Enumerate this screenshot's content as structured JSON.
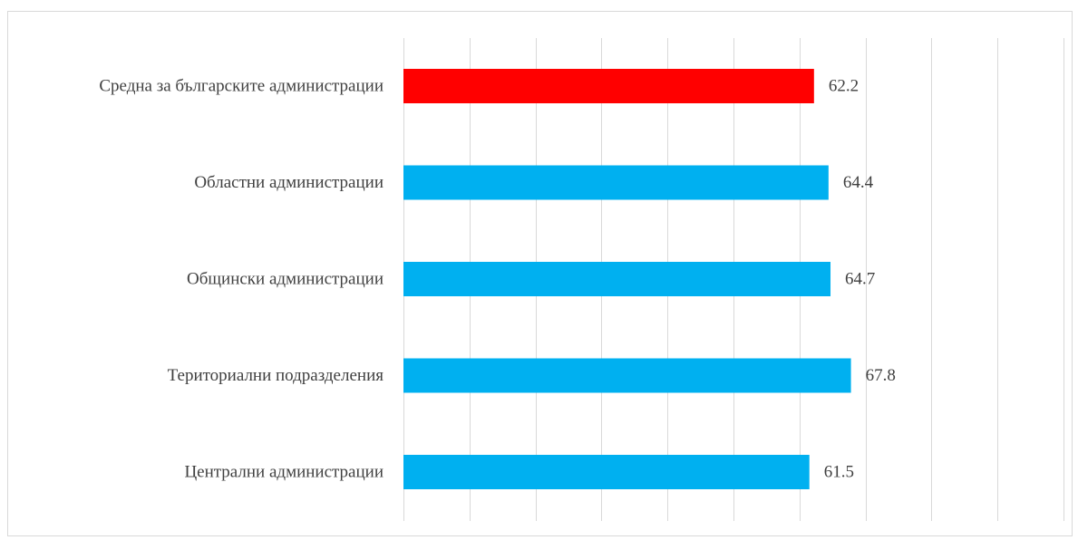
{
  "chart_data": {
    "type": "bar",
    "orientation": "horizontal",
    "categories": [
      "Средна за българските администрации",
      "Областни администрации",
      "Общински администрации",
      "Териториални подразделения",
      "Централни администрации"
    ],
    "values": [
      62.2,
      64.4,
      64.7,
      67.8,
      61.5
    ],
    "value_labels": [
      "62.2",
      "64.4",
      "64.7",
      "67.8",
      "61.5"
    ],
    "colors": [
      "#ff0000",
      "#00b0f0",
      "#00b0f0",
      "#00b0f0",
      "#00b0f0"
    ],
    "gridline_color": "#d9d9d9",
    "title": "",
    "xlabel": "",
    "ylabel": "",
    "xlim": [
      0,
      100
    ],
    "grid": true,
    "legend": "none"
  }
}
